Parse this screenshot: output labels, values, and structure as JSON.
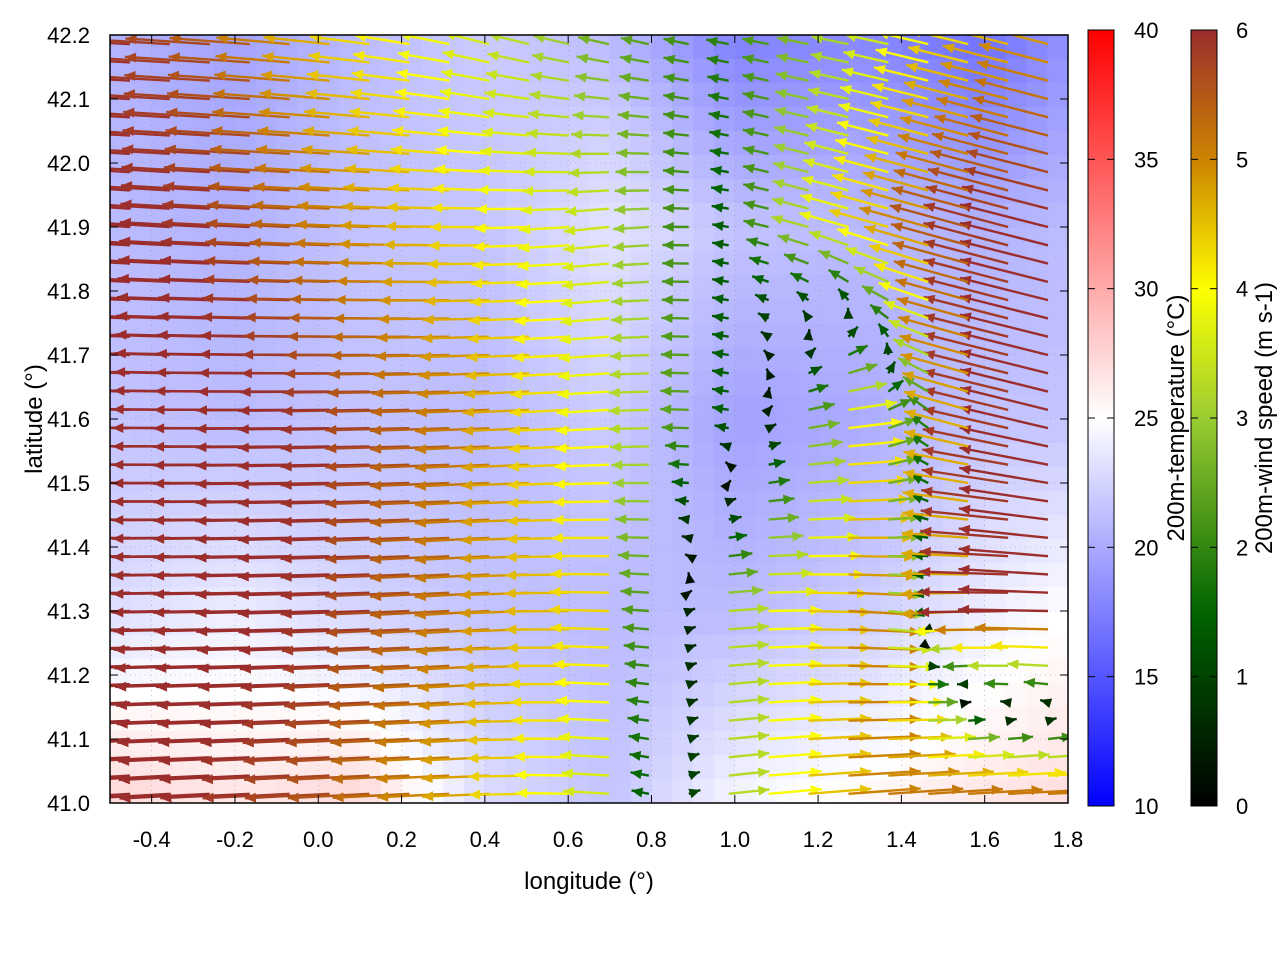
{
  "chart_data": {
    "type": "vector-field",
    "xlabel": "longitude (°)",
    "ylabel": "latitude (°)",
    "xlim": [
      -0.5,
      1.8
    ],
    "ylim": [
      41.0,
      42.2
    ],
    "x_ticks": [
      "-0.4",
      "-0.2",
      "0.0",
      "0.2",
      "0.4",
      "0.6",
      "0.8",
      "1.0",
      "1.2",
      "1.4",
      "1.6",
      "1.8"
    ],
    "y_ticks": [
      "41.0",
      "41.1",
      "41.2",
      "41.3",
      "41.4",
      "41.5",
      "41.6",
      "41.7",
      "41.8",
      "41.9",
      "42.0",
      "42.1",
      "42.2"
    ],
    "temperature_colorbar": {
      "label": "200m-temperature (°C)",
      "range": [
        10,
        40
      ],
      "ticks": [
        "10",
        "15",
        "20",
        "25",
        "30",
        "35",
        "40"
      ],
      "colors": [
        "#0000ff",
        "#ffffff",
        "#ff0000"
      ]
    },
    "wind_colorbar": {
      "label": "200m-wind speed (m s-1)",
      "range": [
        0,
        6
      ],
      "ticks": [
        "0",
        "1",
        "2",
        "3",
        "4",
        "5",
        "6"
      ],
      "colors": [
        "#000000",
        "#006400",
        "#9acd32",
        "#ffff00",
        "#cd8500",
        "#9b2d2d"
      ]
    },
    "temperature_field": {
      "lon": [
        -0.5,
        -0.2,
        0.1,
        0.4,
        0.7,
        1.0,
        1.3,
        1.6,
        1.8
      ],
      "lat": [
        42.2,
        41.9,
        41.6,
        41.3,
        41.0
      ],
      "values": [
        [
          20.5,
          19.5,
          21.0,
          22.0,
          21.0,
          17.5,
          18.0,
          16.5,
          18.5
        ],
        [
          21.0,
          20.5,
          21.5,
          21.5,
          23.5,
          21.5,
          21.0,
          20.5,
          21.0
        ],
        [
          21.5,
          21.0,
          21.5,
          21.0,
          22.0,
          19.5,
          20.0,
          21.5,
          21.5
        ],
        [
          23.0,
          24.0,
          22.5,
          21.5,
          21.0,
          21.0,
          22.0,
          24.0,
          25.0
        ],
        [
          27.5,
          26.5,
          27.5,
          23.0,
          21.5,
          24.5,
          25.5,
          26.5,
          27.0
        ]
      ]
    },
    "wind_field": {
      "lon": [
        -0.5,
        -0.2,
        0.1,
        0.4,
        0.7,
        1.0,
        1.3,
        1.6,
        1.8
      ],
      "lat": [
        42.2,
        41.9,
        41.6,
        41.3,
        41.0
      ],
      "u": [
        [
          -6.0,
          -5.5,
          -4.0,
          -3.0,
          -2.0,
          -1.5,
          -2.5,
          -4.0,
          -4.5
        ],
        [
          -6.0,
          -6.0,
          -5.0,
          -4.0,
          -3.0,
          -1.0,
          -3.5,
          -5.5,
          -6.0
        ],
        [
          -6.5,
          -6.5,
          -6.0,
          -5.0,
          -3.5,
          -1.0,
          4.0,
          -5.5,
          -6.0
        ],
        [
          -6.5,
          -6.5,
          -6.0,
          -5.0,
          -4.0,
          3.0,
          5.0,
          -6.0,
          -6.0
        ],
        [
          -6.0,
          -6.0,
          -5.5,
          -4.5,
          -3.0,
          3.0,
          5.0,
          5.5,
          5.5
        ]
      ],
      "v": [
        [
          0.3,
          0.4,
          0.5,
          0.8,
          0.5,
          0.3,
          0.5,
          1.0,
          1.2
        ],
        [
          0.4,
          0.3,
          0.2,
          0.0,
          -0.3,
          0.2,
          1.0,
          1.5,
          1.5
        ],
        [
          0.1,
          0.0,
          -0.1,
          -0.2,
          -0.2,
          0.2,
          0.5,
          1.3,
          1.5
        ],
        [
          -0.1,
          -0.1,
          -0.2,
          -0.3,
          0.1,
          0.2,
          -0.3,
          -0.2,
          0.2
        ],
        [
          -0.4,
          -0.3,
          -0.3,
          -0.2,
          0.2,
          0.3,
          0.4,
          0.3,
          0.2
        ]
      ]
    }
  }
}
